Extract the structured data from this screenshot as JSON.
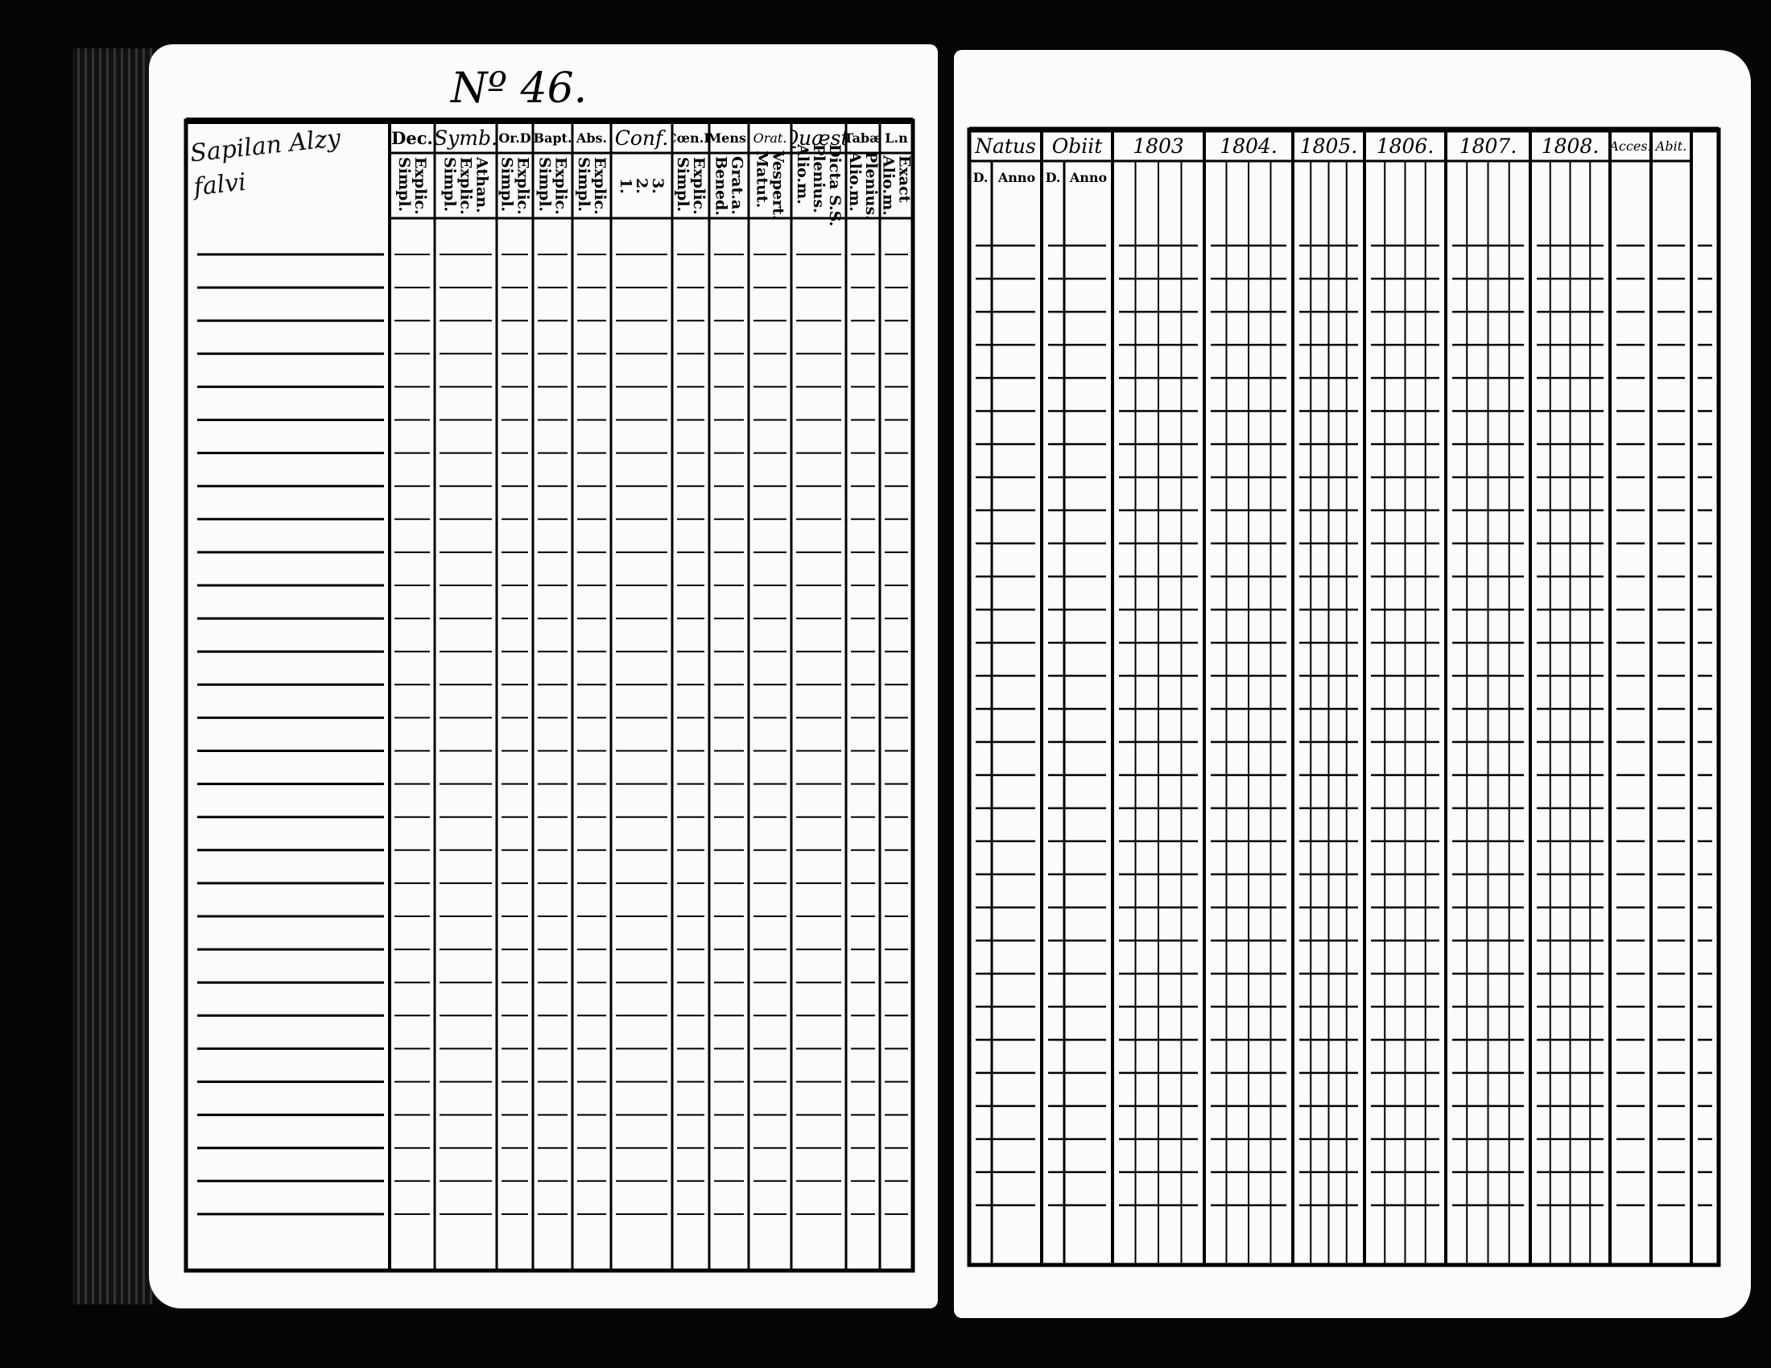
{
  "left_page": {
    "number": "Nº 46.",
    "handwritten_name": "Sapilan Alzy falvi",
    "columns": [
      {
        "header": "Dec.",
        "sub": "Explic.\nSimpl."
      },
      {
        "header": "Symb.",
        "sub": "Athan.\nExplic.\nSimpl."
      },
      {
        "header": "Or.D",
        "sub": "Explic.\nSimpl."
      },
      {
        "header": "Bapt.",
        "sub": "Explic.\nSimpl."
      },
      {
        "header": "Abs.",
        "sub": "Explic.\nSimpl."
      },
      {
        "header": "Conf.",
        "sub": "3.\n2.\n1."
      },
      {
        "header": "Cœn.D",
        "sub": "Explic.\nSimpl."
      },
      {
        "header": "Mens.",
        "sub": "Grat.a.\nBened."
      },
      {
        "header": "Orat.",
        "sub": "Vespert.\nMatut."
      },
      {
        "header": "Quæst.",
        "sub": "Dicta S.S.\nPlenius.\nAlio.m."
      },
      {
        "header": "Tabæ",
        "sub": "Plenius.\nAlio.m."
      },
      {
        "header": "L.n",
        "sub": "Exact\nAlio.m."
      }
    ]
  },
  "right_page": {
    "columns": [
      {
        "header": "Natus",
        "sub": [
          "D.",
          "Anno"
        ]
      },
      {
        "header": "Obiit",
        "sub": [
          "D.",
          "Anno"
        ]
      },
      {
        "header": "1803"
      },
      {
        "header": "1804."
      },
      {
        "header": "1805."
      },
      {
        "header": "1806."
      },
      {
        "header": "1807."
      },
      {
        "header": "1808."
      },
      {
        "header": "Acces."
      },
      {
        "header": "Abit."
      }
    ]
  },
  "colors": {
    "paper": "#fbfbfb",
    "ink": "#000000",
    "background": "#050505"
  }
}
